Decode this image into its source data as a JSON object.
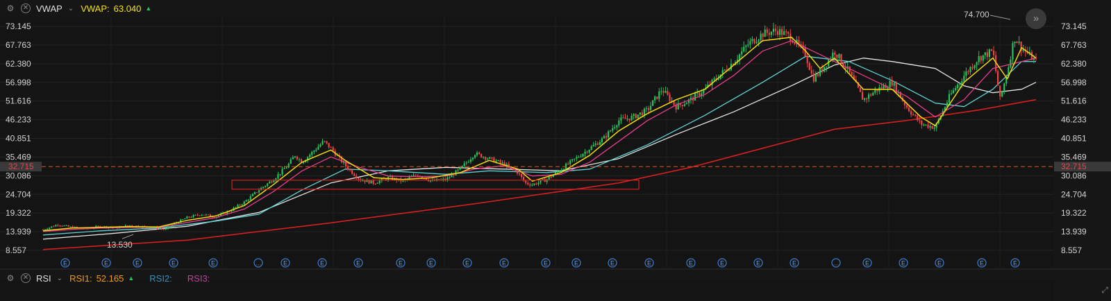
{
  "header_main": {
    "indicator": "VWAP",
    "value_label": "VWAP:",
    "value": "63.040",
    "value_color": "#f5e50a"
  },
  "header_sub": {
    "indicator": "RSI",
    "rsi1_label": "RSI1:",
    "rsi1_value": "52.165",
    "rsi2_label": "RSI2:",
    "rsi3_label": "RSI3:",
    "rsi1_color": "#f39c12",
    "rsi2_color": "#3b8fc0",
    "rsi3_color": "#c43fa0"
  },
  "icons": {
    "settings": "gear-icon",
    "close": "close-icon",
    "dropdown": "chevron-down-icon",
    "event": "event-icon",
    "more_events": "ellipsis-icon",
    "jump_latest": "fast-forward-icon",
    "expand": "expand-icon"
  },
  "chart_data": {
    "type": "candlestick",
    "y_ticks": [
      "73.145",
      "67.763",
      "62.380",
      "56.998",
      "51.616",
      "46.233",
      "40.851",
      "35.469",
      "30.086",
      "24.704",
      "19.322",
      "13.939",
      "8.557"
    ],
    "ylim": [
      8.557,
      73.145
    ],
    "current_price": "32.715",
    "current_price_value": 32.715,
    "max_label": "74.700",
    "max_value": 74.7,
    "min_label": "13.530",
    "min_value": 13.53,
    "grid": true,
    "colors": {
      "up": "#22c55e",
      "down": "#ef4444",
      "ma_fast": "#f5d90a",
      "ma_mid": "#e83e8c",
      "ma_slow": "#5fd3d6",
      "ma_long": "#e6e6e6",
      "ma_200": "#d62020",
      "box": "#d62020",
      "price_line": "#e0531e"
    },
    "price_path": [
      [
        0,
        14.5
      ],
      [
        2,
        16.0
      ],
      [
        4,
        15.2
      ],
      [
        6,
        14.8
      ],
      [
        8,
        15.5
      ],
      [
        10,
        15.0
      ],
      [
        12,
        15.8
      ],
      [
        14,
        15.4
      ],
      [
        16,
        15.0
      ],
      [
        17,
        14.5
      ],
      [
        18,
        16.0
      ],
      [
        20,
        18.0
      ],
      [
        22,
        19.0
      ],
      [
        24,
        18.2
      ],
      [
        26,
        20.0
      ],
      [
        28,
        22.5
      ],
      [
        30,
        26.0
      ],
      [
        32,
        29.0
      ],
      [
        34,
        33.0
      ],
      [
        35,
        36.0
      ],
      [
        36,
        34.0
      ],
      [
        38,
        38.0
      ],
      [
        39,
        40.0
      ],
      [
        40,
        38.0
      ],
      [
        42,
        33.0
      ],
      [
        44,
        29.0
      ],
      [
        46,
        28.0
      ],
      [
        48,
        29.5
      ],
      [
        50,
        28.5
      ],
      [
        52,
        30.5
      ],
      [
        54,
        28.5
      ],
      [
        56,
        29.0
      ],
      [
        58,
        32.0
      ],
      [
        60,
        36.5
      ],
      [
        62,
        35.0
      ],
      [
        64,
        33.5
      ],
      [
        66,
        31.0
      ],
      [
        67,
        28.0
      ],
      [
        68,
        27.5
      ],
      [
        70,
        29.0
      ],
      [
        72,
        32.0
      ],
      [
        74,
        35.0
      ],
      [
        76,
        38.0
      ],
      [
        78,
        41.0
      ],
      [
        80,
        46.0
      ],
      [
        82,
        47.0
      ],
      [
        84,
        49.0
      ],
      [
        86,
        55.0
      ],
      [
        88,
        50.0
      ],
      [
        90,
        52.0
      ],
      [
        92,
        55.0
      ],
      [
        94,
        59.0
      ],
      [
        96,
        63.0
      ],
      [
        98,
        68.0
      ],
      [
        100,
        71.0
      ],
      [
        102,
        72.0
      ],
      [
        104,
        70.0
      ],
      [
        106,
        65.0
      ],
      [
        107,
        58.0
      ],
      [
        108,
        60.0
      ],
      [
        110,
        66.0
      ],
      [
        112,
        60.0
      ],
      [
        114,
        52.0
      ],
      [
        116,
        55.0
      ],
      [
        118,
        57.0
      ],
      [
        120,
        50.0
      ],
      [
        122,
        45.0
      ],
      [
        124,
        44.0
      ],
      [
        126,
        53.0
      ],
      [
        128,
        59.0
      ],
      [
        130,
        64.0
      ],
      [
        132,
        66.0
      ],
      [
        133,
        52.0
      ],
      [
        134,
        60.0
      ],
      [
        135,
        70.0
      ],
      [
        136,
        67.0
      ],
      [
        137,
        65.0
      ],
      [
        138,
        63.0
      ]
    ],
    "ma_fast_path": [
      [
        0,
        14.2
      ],
      [
        4,
        15.0
      ],
      [
        8,
        15.2
      ],
      [
        12,
        15.4
      ],
      [
        16,
        15.3
      ],
      [
        20,
        17.2
      ],
      [
        24,
        18.5
      ],
      [
        28,
        21.5
      ],
      [
        32,
        27.5
      ],
      [
        36,
        34.0
      ],
      [
        40,
        37.5
      ],
      [
        42,
        34.5
      ],
      [
        46,
        29.5
      ],
      [
        50,
        29.0
      ],
      [
        54,
        29.5
      ],
      [
        58,
        31.0
      ],
      [
        62,
        34.5
      ],
      [
        66,
        32.0
      ],
      [
        68,
        28.5
      ],
      [
        72,
        31.0
      ],
      [
        76,
        36.0
      ],
      [
        80,
        43.0
      ],
      [
        84,
        48.0
      ],
      [
        88,
        52.0
      ],
      [
        92,
        55.0
      ],
      [
        96,
        62.0
      ],
      [
        100,
        69.0
      ],
      [
        104,
        70.0
      ],
      [
        106,
        66.0
      ],
      [
        108,
        61.0
      ],
      [
        110,
        64.0
      ],
      [
        114,
        55.0
      ],
      [
        118,
        55.0
      ],
      [
        122,
        47.0
      ],
      [
        124,
        44.5
      ],
      [
        128,
        57.0
      ],
      [
        132,
        64.0
      ],
      [
        134,
        58.0
      ],
      [
        136,
        67.0
      ],
      [
        138,
        64.0
      ]
    ],
    "ma_mid_path": [
      [
        0,
        14.0
      ],
      [
        4,
        14.6
      ],
      [
        8,
        15.0
      ],
      [
        12,
        15.2
      ],
      [
        16,
        15.2
      ],
      [
        20,
        16.6
      ],
      [
        24,
        18.0
      ],
      [
        28,
        20.5
      ],
      [
        32,
        25.5
      ],
      [
        36,
        31.5
      ],
      [
        40,
        35.5
      ],
      [
        44,
        32.5
      ],
      [
        48,
        30.0
      ],
      [
        52,
        29.8
      ],
      [
        56,
        30.0
      ],
      [
        60,
        32.0
      ],
      [
        64,
        33.0
      ],
      [
        68,
        30.0
      ],
      [
        72,
        30.5
      ],
      [
        76,
        34.0
      ],
      [
        80,
        40.0
      ],
      [
        84,
        46.0
      ],
      [
        88,
        50.5
      ],
      [
        92,
        53.5
      ],
      [
        96,
        59.0
      ],
      [
        100,
        66.0
      ],
      [
        104,
        69.0
      ],
      [
        108,
        65.0
      ],
      [
        112,
        61.0
      ],
      [
        116,
        57.0
      ],
      [
        120,
        53.0
      ],
      [
        124,
        47.0
      ],
      [
        128,
        52.0
      ],
      [
        132,
        61.0
      ],
      [
        136,
        63.0
      ],
      [
        138,
        64.0
      ]
    ],
    "ma_slow_path": [
      [
        0,
        13.0
      ],
      [
        8,
        14.2
      ],
      [
        16,
        15.0
      ],
      [
        24,
        17.0
      ],
      [
        30,
        19.0
      ],
      [
        36,
        26.0
      ],
      [
        42,
        32.0
      ],
      [
        48,
        31.5
      ],
      [
        56,
        30.5
      ],
      [
        62,
        31.5
      ],
      [
        70,
        31.0
      ],
      [
        76,
        32.0
      ],
      [
        84,
        39.0
      ],
      [
        92,
        47.5
      ],
      [
        100,
        57.0
      ],
      [
        106,
        64.5
      ],
      [
        112,
        63.0
      ],
      [
        118,
        57.5
      ],
      [
        124,
        51.0
      ],
      [
        128,
        50.0
      ],
      [
        132,
        55.0
      ],
      [
        136,
        63.0
      ],
      [
        138,
        63.0
      ]
    ],
    "ma_long_path": [
      [
        0,
        11.8
      ],
      [
        10,
        13.5
      ],
      [
        20,
        15.5
      ],
      [
        30,
        19.5
      ],
      [
        40,
        28.0
      ],
      [
        48,
        31.5
      ],
      [
        56,
        32.5
      ],
      [
        64,
        32.0
      ],
      [
        72,
        31.5
      ],
      [
        80,
        35.0
      ],
      [
        88,
        42.0
      ],
      [
        96,
        48.5
      ],
      [
        104,
        56.0
      ],
      [
        110,
        62.0
      ],
      [
        114,
        64.0
      ],
      [
        118,
        63.0
      ],
      [
        124,
        61.0
      ],
      [
        128,
        56.0
      ],
      [
        132,
        54.0
      ],
      [
        136,
        55.0
      ],
      [
        138,
        57.0
      ]
    ],
    "ma_200_path": [
      [
        0,
        8.8
      ],
      [
        20,
        11.5
      ],
      [
        40,
        16.5
      ],
      [
        60,
        22.0
      ],
      [
        70,
        25.0
      ],
      [
        80,
        28.0
      ],
      [
        90,
        32.5
      ],
      [
        100,
        38.0
      ],
      [
        110,
        43.5
      ],
      [
        120,
        46.0
      ],
      [
        130,
        49.0
      ],
      [
        138,
        52.0
      ]
    ],
    "consolidation_box": {
      "y_low": 26.2,
      "y_high": 28.8
    },
    "event_markers": [
      "E",
      "E",
      "E",
      "E",
      "E",
      "…",
      "E",
      "E",
      "E",
      "E",
      "E",
      "E",
      "E",
      "E",
      "E",
      "E",
      "E",
      "E",
      "E",
      "E",
      "E",
      "…",
      "E",
      "E",
      "E",
      "E",
      "E"
    ]
  }
}
